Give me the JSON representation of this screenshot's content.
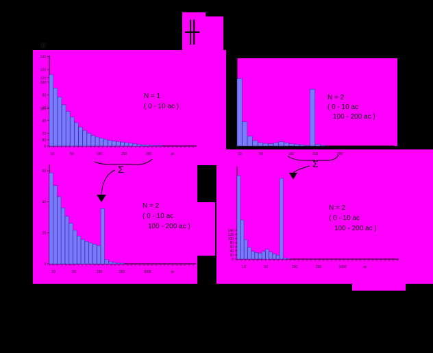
{
  "colors": {
    "background": "#000000",
    "panel": "#ff00ff",
    "bar": "#7a7aff",
    "bar_edge": "#2f2f9f",
    "arrow": "#000000"
  },
  "symbols": {
    "top_mark": "╫",
    "sum": "Σ"
  },
  "chart_data": [
    {
      "type": "bar",
      "panel": "top-left",
      "annotation": [
        "N = 1",
        "( 0 - 10 ac )"
      ],
      "x_tick_labels": [
        "10",
        "50",
        "100",
        "150",
        "200",
        "ac"
      ],
      "y_tick_labels": [
        "0",
        "20",
        "40",
        "60",
        "80",
        "100",
        "120",
        "140",
        "160"
      ],
      "ylim": [
        0,
        160
      ],
      "values": [
        128,
        104,
        88,
        74,
        62,
        52,
        42,
        34,
        28,
        23,
        19,
        16,
        14,
        12,
        10,
        9,
        8,
        7,
        6,
        5,
        4,
        3,
        2,
        2,
        1,
        1,
        1,
        0,
        0,
        0,
        0,
        0,
        0,
        0,
        0
      ]
    },
    {
      "type": "bar",
      "panel": "top-right",
      "annotation": [
        "N = 2",
        "( 0 - 10 ac",
        "100 - 200 ac )"
      ],
      "x_tick_labels": [
        "10",
        "50",
        "100",
        "150",
        "200"
      ],
      "values": [
        125,
        45,
        18,
        10,
        6,
        5,
        4,
        6,
        8,
        6,
        4,
        3,
        2,
        1,
        105,
        3,
        1,
        0,
        0,
        0,
        0,
        0,
        0,
        0,
        0,
        0,
        0,
        0,
        0,
        0
      ]
    },
    {
      "type": "bar",
      "panel": "bottom-left",
      "annotation": [
        "N = 2",
        "( 0 - 10 ac",
        "100 - 200 ac )"
      ],
      "x_tick_labels": [
        "10",
        "50",
        "100",
        "200",
        "1000",
        "ac"
      ],
      "y_tick_labels": [
        "0",
        "20",
        "40",
        "60",
        "80",
        "100",
        "120",
        "140"
      ],
      "ylim": [
        0,
        140
      ],
      "values": [
        130,
        112,
        96,
        80,
        68,
        58,
        48,
        40,
        35,
        32,
        30,
        28,
        26,
        79,
        6,
        3,
        2,
        1,
        1,
        0,
        0,
        0,
        0,
        0,
        0,
        0,
        0,
        0,
        0,
        0,
        0,
        0,
        0,
        0,
        0,
        0,
        0
      ]
    },
    {
      "type": "bar",
      "panel": "bottom-right",
      "annotation": [
        "N = 2",
        "( 0 - 10 ac",
        "100 - 200 ac )"
      ],
      "x_tick_labels": [
        "10",
        "50",
        "100",
        "200",
        "1000",
        "ac"
      ],
      "y_tick_labels": [
        "0",
        "20",
        "40",
        "60",
        "80",
        "100",
        "120",
        "140"
      ],
      "ylim": [
        0,
        140
      ],
      "values": [
        128,
        60,
        30,
        18,
        12,
        10,
        9,
        12,
        15,
        11,
        8,
        6,
        124,
        2,
        1,
        0,
        0,
        0,
        0,
        0,
        0,
        0,
        0,
        0,
        0,
        0,
        0,
        0,
        0,
        0,
        0,
        0,
        0,
        0,
        0,
        0,
        0,
        0,
        0,
        0,
        0,
        0,
        0,
        0,
        0
      ]
    }
  ]
}
